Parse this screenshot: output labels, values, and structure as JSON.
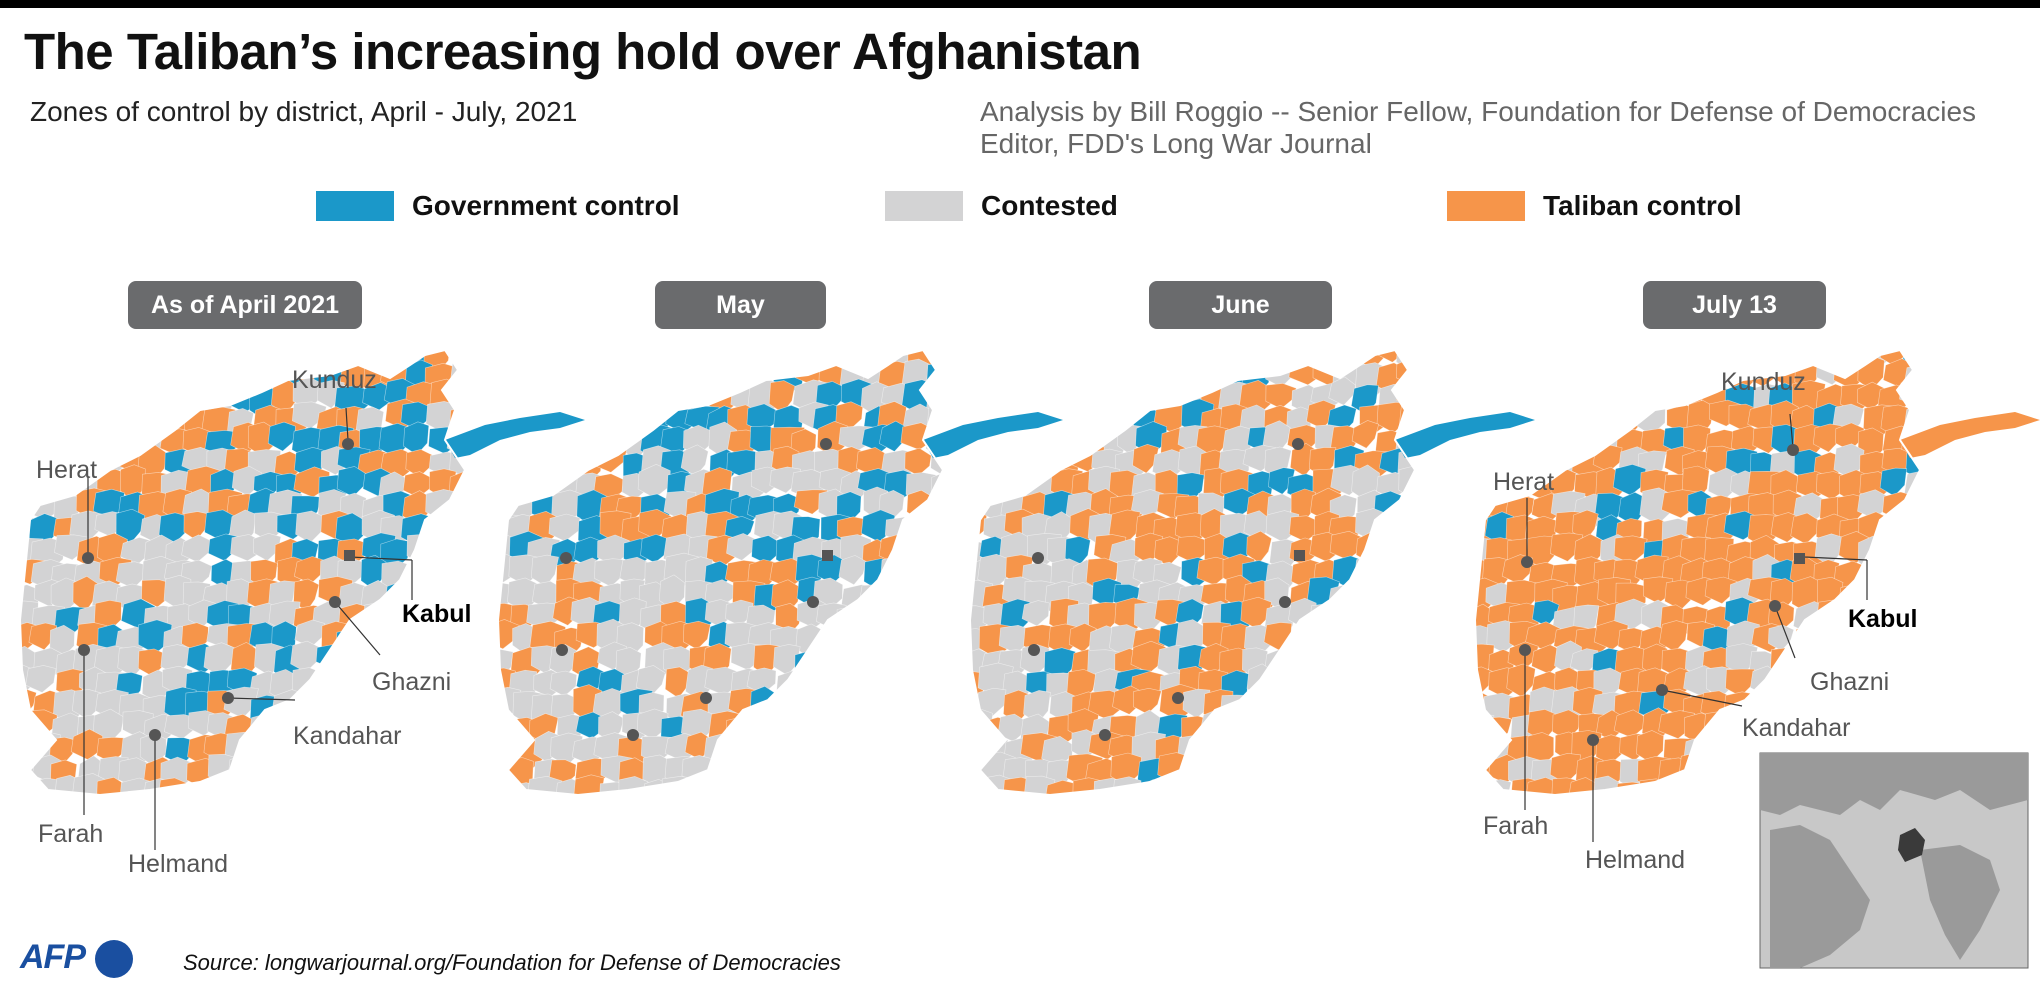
{
  "title": "The Taliban’s increasing hold over Afghanistan",
  "subtitle": "Zones of control by district, April - July, 2021",
  "analysis": [
    "Analysis by Bill Roggio -- Senior Fellow, Foundation for Defense of Democracies",
    "Editor, FDD's Long War Journal"
  ],
  "legend": [
    {
      "label": "Government control",
      "color": "#1b98c9"
    },
    {
      "label": "Contested",
      "color": "#d3d3d4"
    },
    {
      "label": "Taliban control",
      "color": "#f6954a"
    }
  ],
  "colors": {
    "government": "#1b98c9",
    "contested": "#d3d3d4",
    "taliban": "#f6954a",
    "pill": "#6a6b6d",
    "afp_blue": "#1a4fa0"
  },
  "panels": [
    {
      "label": "As of April 2021",
      "share": {
        "government": 0.32,
        "contested": 0.45,
        "taliban": 0.23
      }
    },
    {
      "label": "May",
      "share": {
        "government": 0.3,
        "contested": 0.43,
        "taliban": 0.27
      }
    },
    {
      "label": "June",
      "share": {
        "government": 0.22,
        "contested": 0.38,
        "taliban": 0.4
      }
    },
    {
      "label": "July 13",
      "share": {
        "government": 0.1,
        "contested": 0.22,
        "taliban": 0.68
      }
    }
  ],
  "cities": {
    "kunduz": "Kunduz",
    "herat": "Herat",
    "kabul": "Kabul",
    "ghazni": "Ghazni",
    "kandahar": "Kandahar",
    "farah": "Farah",
    "helmand": "Helmand"
  },
  "footer": {
    "logo": "AFP",
    "source": "Source: longwarjournal.org/Foundation for Defense of Democracies"
  }
}
